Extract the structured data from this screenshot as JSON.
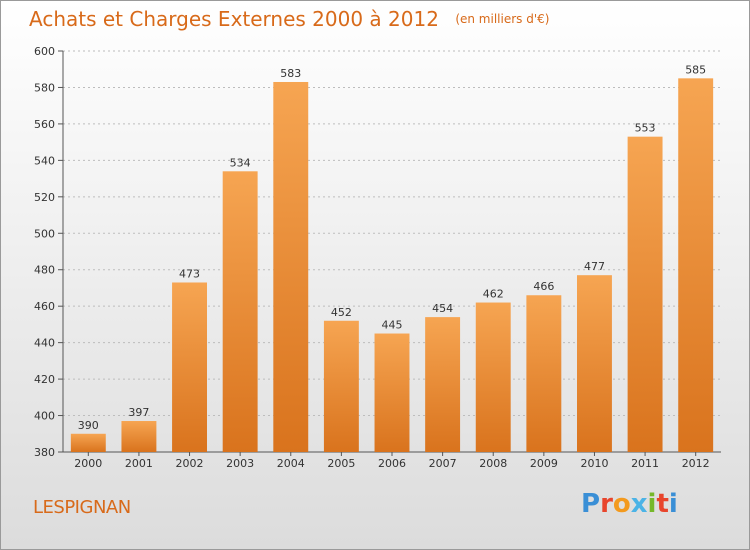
{
  "header": {
    "title": "Achats et Charges Externes 2000 à 2012",
    "subtitle": "(en milliers d'€)"
  },
  "footer": {
    "location": "LESPIGNAN",
    "logo_text": "Proxiti",
    "logo_colors": [
      "#3a8fd6",
      "#e8452c",
      "#f39a1e",
      "#4bb3e6",
      "#76b82a",
      "#e8452c",
      "#3a8fd6"
    ]
  },
  "colors": {
    "bar_light": "#f6a552",
    "bar_dark": "#d9731d",
    "accent": "#d86a1a",
    "grid": "#bdbdbd"
  },
  "chart_data": {
    "type": "bar",
    "title": "Achats et Charges Externes 2000 à 2012",
    "subtitle": "(en milliers d'€)",
    "categories": [
      "2000",
      "2001",
      "2002",
      "2003",
      "2004",
      "2005",
      "2006",
      "2007",
      "2008",
      "2009",
      "2010",
      "2011",
      "2012"
    ],
    "values": [
      390,
      397,
      473,
      534,
      583,
      452,
      445,
      454,
      462,
      466,
      477,
      553,
      585
    ],
    "ylim": [
      380,
      600
    ],
    "yticks": [
      380,
      400,
      420,
      440,
      460,
      480,
      500,
      520,
      540,
      560,
      580,
      600
    ],
    "grid": true,
    "xlabel": "",
    "ylabel": ""
  }
}
